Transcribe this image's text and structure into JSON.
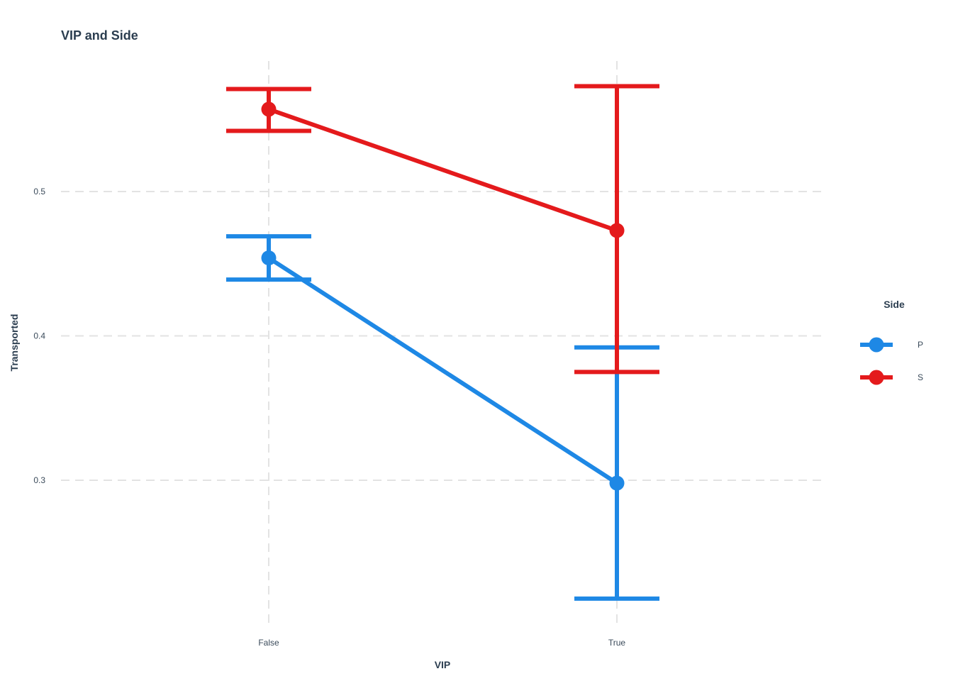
{
  "chart_data": {
    "type": "line",
    "title": "VIP and Side",
    "xlabel": "VIP",
    "ylabel": "Transported",
    "categories": [
      "False",
      "True"
    ],
    "ylim": [
      0.2,
      0.59
    ],
    "yticks": [
      0.3,
      0.4,
      0.5
    ],
    "ytick_labels": [
      "0.3",
      "0.4",
      "0.5"
    ],
    "grid": true,
    "legend": {
      "title": "Side",
      "position": "right"
    },
    "series": [
      {
        "name": "P",
        "color": "#1e88e5",
        "values": [
          0.454,
          0.298
        ],
        "error_low": [
          0.439,
          0.218
        ],
        "error_high": [
          0.469,
          0.392
        ]
      },
      {
        "name": "S",
        "color": "#e41a1c",
        "values": [
          0.557,
          0.473
        ],
        "error_low": [
          0.542,
          0.375
        ],
        "error_high": [
          0.571,
          0.573
        ]
      }
    ]
  }
}
